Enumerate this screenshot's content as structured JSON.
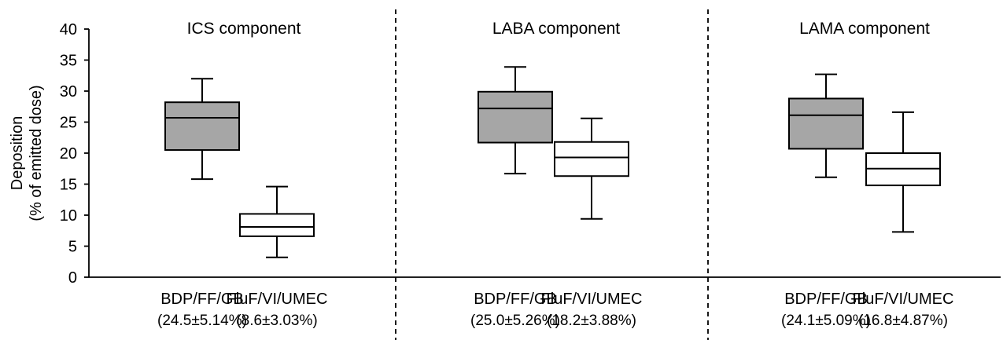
{
  "chart_data": {
    "type": "box",
    "ylabel": [
      "Deposition",
      "(% of emitted dose)"
    ],
    "ylim": [
      0,
      40
    ],
    "yticks": [
      0,
      5,
      10,
      15,
      20,
      25,
      30,
      35,
      40
    ],
    "grid": false,
    "panels": [
      {
        "title": "ICS component",
        "boxes": [
          {
            "label": "BDP/FF/GB",
            "sublabel": "(24.5±5.14%)",
            "min": 15.8,
            "q1": 20.5,
            "median": 25.7,
            "q3": 28.2,
            "max": 32.0,
            "fill": "#a6a6a6"
          },
          {
            "label": "FluF/VI/UMEC",
            "sublabel": "(8.6±3.03%)",
            "min": 3.2,
            "q1": 6.6,
            "median": 8.1,
            "q3": 10.2,
            "max": 14.6,
            "fill": "#ffffff"
          }
        ]
      },
      {
        "title": "LABA component",
        "boxes": [
          {
            "label": "BDP/FF/GB",
            "sublabel": "(25.0±5.26%)",
            "min": 16.7,
            "q1": 21.7,
            "median": 27.2,
            "q3": 29.9,
            "max": 33.9,
            "fill": "#a6a6a6"
          },
          {
            "label": "FluF/VI/UMEC",
            "sublabel": "(18.2±3.88%)",
            "min": 9.4,
            "q1": 16.3,
            "median": 19.3,
            "q3": 21.8,
            "max": 25.6,
            "fill": "#ffffff"
          }
        ]
      },
      {
        "title": "LAMA component",
        "boxes": [
          {
            "label": "BDP/FF/GB",
            "sublabel": "(24.1±5.09%)",
            "min": 16.1,
            "q1": 20.7,
            "median": 26.1,
            "q3": 28.8,
            "max": 32.7,
            "fill": "#a6a6a6"
          },
          {
            "label": "FluF/VI/UMEC",
            "sublabel": "(16.8±4.87%)",
            "min": 7.3,
            "q1": 14.8,
            "median": 17.5,
            "q3": 20.0,
            "max": 26.6,
            "fill": "#ffffff"
          }
        ]
      }
    ]
  }
}
